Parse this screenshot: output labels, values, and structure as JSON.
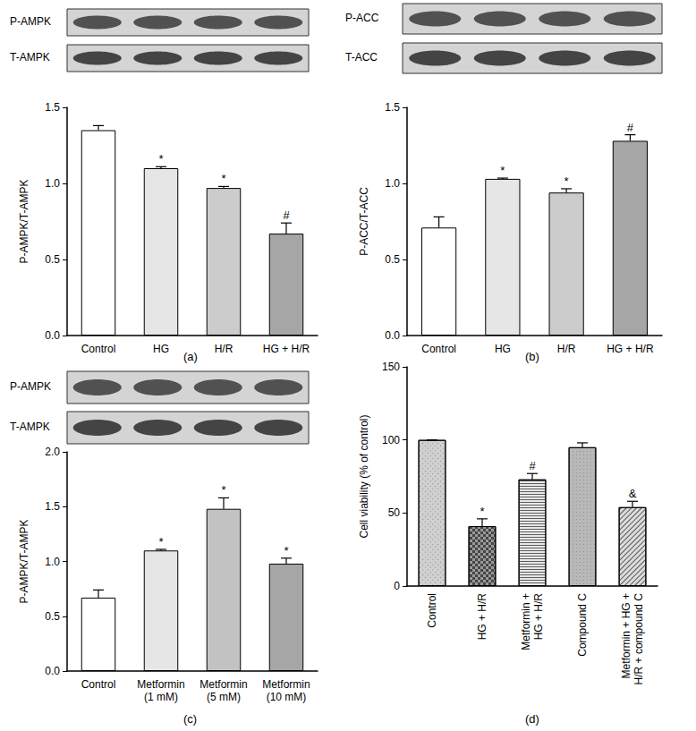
{
  "chart_data": [
    {
      "type": "bar",
      "caption": "(a)",
      "blots": [
        "P-AMPK",
        "T-AMPK"
      ],
      "ylabel": "P-AMPK/T-AMPK",
      "categories": [
        "Control",
        "HG",
        "H/R",
        "HG + H/R"
      ],
      "values": [
        1.35,
        1.1,
        0.97,
        0.67
      ],
      "errors": [
        0.03,
        0.01,
        0.01,
        0.07
      ],
      "annotations": [
        null,
        "*",
        "*",
        "#"
      ],
      "colors": [
        "#ffffff",
        "#e6e6e6",
        "#cccccc",
        "#a6a6a6"
      ],
      "ylim": [
        0,
        1.5
      ],
      "yticks": [
        {
          "value": 0,
          "label": "0.0"
        },
        0.5,
        {
          "value": 1,
          "label": "1.0"
        },
        1.5
      ],
      "grid": false
    },
    {
      "type": "bar",
      "caption": "(b)",
      "blots": [
        "P-ACC",
        "T-ACC"
      ],
      "ylabel": "P-ACC/T-ACC",
      "categories": [
        "Control",
        "HG",
        "H/R",
        "HG + H/R"
      ],
      "values": [
        0.71,
        1.03,
        0.94,
        1.28
      ],
      "errors": [
        0.07,
        0.005,
        0.025,
        0.04
      ],
      "annotations": [
        null,
        "*",
        "*",
        "#"
      ],
      "colors": [
        "#ffffff",
        "#e6e6e6",
        "#cccccc",
        "#a6a6a6"
      ],
      "ylim": [
        0,
        1.5
      ],
      "yticks": [
        {
          "value": 0,
          "label": "0.0"
        },
        0.5,
        {
          "value": 1,
          "label": "1.0"
        },
        1.5
      ],
      "grid": false
    },
    {
      "type": "bar",
      "caption": "(c)",
      "blots": [
        "P-AMPK",
        "T-AMPK"
      ],
      "ylabel": "P-AMPK/T-AMPK",
      "categories": [
        "Control",
        "Metformin\n(1 mM)",
        "Metformin\n(5 mM)",
        "Metformin\n(10 mM)"
      ],
      "values": [
        0.67,
        1.1,
        1.48,
        0.98
      ],
      "errors": [
        0.07,
        0.01,
        0.1,
        0.05
      ],
      "annotations": [
        null,
        "*",
        "*",
        "*"
      ],
      "colors": [
        "#ffffff",
        "#e6e6e6",
        "#c2c2c2",
        "#a6a6a6"
      ],
      "ylim": [
        0,
        2
      ],
      "yticks": [
        {
          "value": 0,
          "label": "0.0"
        },
        0.5,
        {
          "value": 1,
          "label": "1.0"
        },
        1.5,
        {
          "value": 2,
          "label": "2.0"
        }
      ],
      "grid": false
    },
    {
      "type": "bar",
      "caption": "(d)",
      "ylabel": "Cell viability (% of control)",
      "categories": [
        "Control",
        "HG + H/R",
        "Metformin +\nHG + H/R",
        "Compound C",
        "Metformin + HG +\nH/R + compound C"
      ],
      "values": [
        100,
        41,
        73,
        95,
        54
      ],
      "errors": [
        0,
        5,
        4,
        3,
        4
      ],
      "annotations": [
        null,
        "*",
        "#",
        null,
        "&"
      ],
      "colors": [
        "#d0d0d0",
        "#9a9a9a",
        "#e8e8e8",
        "#b8b8b8",
        "#dcdcdc"
      ],
      "ylim": [
        0,
        150
      ],
      "yticks": [
        0,
        50,
        100,
        150
      ],
      "grid": false
    }
  ]
}
